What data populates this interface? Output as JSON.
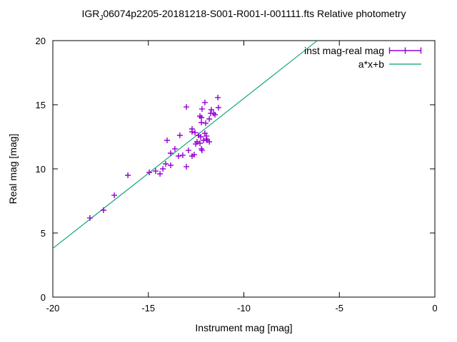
{
  "title": {
    "prefix": "IGR",
    "subscript": "J",
    "rest": "06074p2205-20181218-S001-R001-I-001111.fts Relative photometry"
  },
  "axes": {
    "xlabel": "Instrument mag [mag]",
    "ylabel": "Real mag [mag]",
    "x_ticks": [
      "-20",
      "-15",
      "-10",
      "-5",
      "0"
    ],
    "y_ticks": [
      "0",
      "5",
      "10",
      "15",
      "20"
    ]
  },
  "legend": {
    "entries": [
      {
        "label": "inst mag-real mag",
        "type": "errorbar-points",
        "color": "#9400d3"
      },
      {
        "label": "a*x+b",
        "type": "line",
        "color": "#009e73"
      }
    ]
  },
  "chart_data": {
    "type": "scatter",
    "title": "IGR_J06074p2205-20181218-S001-R001-I-001111.fts Relative photometry",
    "xlabel": "Instrument mag [mag]",
    "ylabel": "Real mag [mag]",
    "xlim": [
      -20,
      0
    ],
    "ylim": [
      0,
      20
    ],
    "x_ticks": [
      -20,
      -15,
      -10,
      -5,
      0
    ],
    "y_ticks": [
      0,
      5,
      10,
      15,
      20
    ],
    "grid": false,
    "legend_position": "top-right",
    "series": [
      {
        "name": "inst mag-real mag",
        "type": "scatter",
        "marker": "plus",
        "color": "#9400d3",
        "points": [
          [
            -18.06,
            6.17
          ],
          [
            -17.35,
            6.78
          ],
          [
            -16.78,
            7.94
          ],
          [
            -16.07,
            9.5
          ],
          [
            -14.95,
            9.72
          ],
          [
            -14.62,
            9.83
          ],
          [
            -14.39,
            9.61
          ],
          [
            -14.24,
            10.0
          ],
          [
            -14.09,
            10.39
          ],
          [
            -13.83,
            10.28
          ],
          [
            -14.02,
            12.22
          ],
          [
            -13.83,
            11.22
          ],
          [
            -13.61,
            11.56
          ],
          [
            -13.42,
            11.0
          ],
          [
            -13.35,
            12.61
          ],
          [
            -13.2,
            11.06
          ],
          [
            -13.01,
            14.83
          ],
          [
            -13.01,
            10.17
          ],
          [
            -12.9,
            11.44
          ],
          [
            -12.71,
            13.11
          ],
          [
            -12.71,
            12.89
          ],
          [
            -12.71,
            11.0
          ],
          [
            -12.6,
            11.11
          ],
          [
            -12.56,
            12.83
          ],
          [
            -12.52,
            11.94
          ],
          [
            -12.45,
            12.11
          ],
          [
            -12.37,
            12.61
          ],
          [
            -12.3,
            14.11
          ],
          [
            -12.22,
            14.0
          ],
          [
            -12.3,
            12.0
          ],
          [
            -12.26,
            12.5
          ],
          [
            -12.22,
            13.61
          ],
          [
            -12.22,
            11.56
          ],
          [
            -12.19,
            14.67
          ],
          [
            -12.19,
            11.44
          ],
          [
            -12.11,
            12.22
          ],
          [
            -12.04,
            12.78
          ],
          [
            -12.04,
            15.17
          ],
          [
            -12.0,
            13.56
          ],
          [
            -11.96,
            12.56
          ],
          [
            -11.96,
            12.33
          ],
          [
            -11.93,
            12.22
          ],
          [
            -11.81,
            13.89
          ],
          [
            -11.81,
            12.11
          ],
          [
            -11.7,
            14.61
          ],
          [
            -11.74,
            14.33
          ],
          [
            -11.59,
            14.33
          ],
          [
            -11.51,
            14.22
          ],
          [
            -11.36,
            15.56
          ],
          [
            -11.33,
            14.78
          ]
        ]
      },
      {
        "name": "a*x+b",
        "type": "line",
        "color": "#009e73",
        "fit": {
          "a": 1.17,
          "b": 27.2
        }
      }
    ]
  }
}
